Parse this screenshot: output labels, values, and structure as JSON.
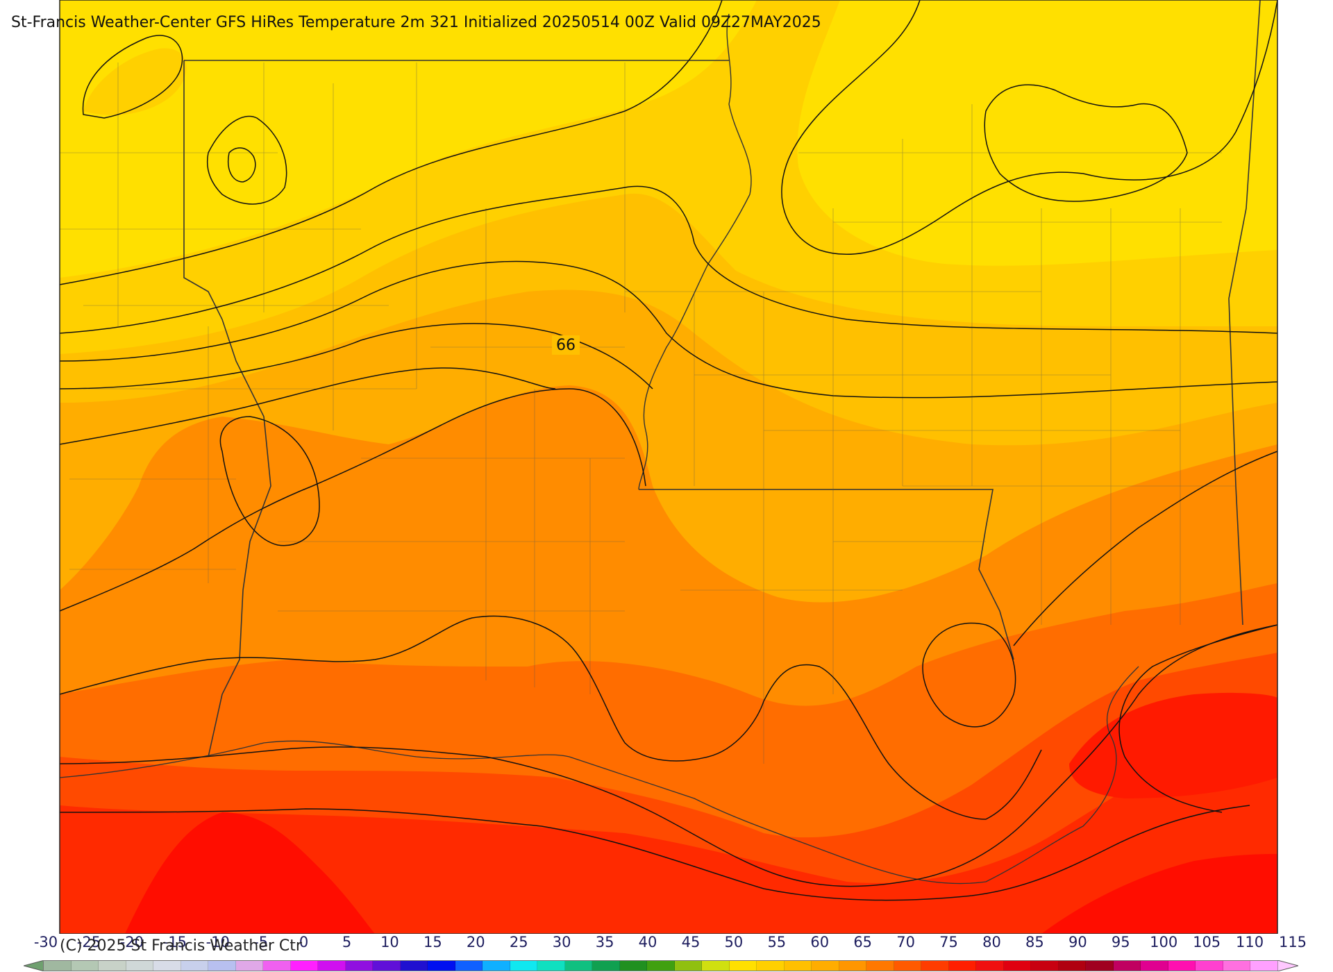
{
  "title": "St-Francis Weather-Center GFS HiRes Temperature 2m  321 Initialized 20250514 00Z Valid 09Z27MAY2025",
  "copyright": "(C) 2025 St Francis Weather Ctr",
  "map": {
    "contour_label": "66",
    "fill_colors": {
      "yellow": "#ffe000",
      "light_amber": "#ffd000",
      "amber": "#ffc000",
      "light_orange": "#ffad00",
      "orange": "#ff8c00",
      "dark_orange": "#ff6d00",
      "red_orange": "#ff4a00",
      "red": "#ff2a00",
      "deep_red": "#ff0d00"
    }
  },
  "colorbar": {
    "ticks": [
      "-30",
      "-25",
      "-20",
      "-15",
      "-10",
      "-5",
      "0",
      "5",
      "10",
      "15",
      "20",
      "25",
      "30",
      "35",
      "40",
      "45",
      "50",
      "55",
      "60",
      "65",
      "70",
      "75",
      "80",
      "85",
      "90",
      "95",
      "100",
      "105",
      "110",
      "115"
    ],
    "colors": [
      "#a0b8a0",
      "#b4c8b4",
      "#c8d2c8",
      "#d0d8d8",
      "#d8dce8",
      "#c8d0ec",
      "#b8c0f0",
      "#e0a8e8",
      "#f060f0",
      "#ff20ff",
      "#d010f0",
      "#9010e0",
      "#6010d8",
      "#2010d0",
      "#0010f0",
      "#1060ff",
      "#10b0ff",
      "#10e8f0",
      "#10e0c0",
      "#10c080",
      "#10a050",
      "#209020",
      "#40a010",
      "#90c010",
      "#d0e010",
      "#ffe000",
      "#ffd000",
      "#ffc000",
      "#ffad00",
      "#ff9600",
      "#ff7800",
      "#ff5a00",
      "#ff3c00",
      "#ff1e00",
      "#f01010",
      "#e00010",
      "#c80010",
      "#b00010",
      "#a00020",
      "#c00060",
      "#e00090",
      "#ff10b0",
      "#ff40d0",
      "#ff70e0",
      "#ffa0ff"
    ]
  }
}
